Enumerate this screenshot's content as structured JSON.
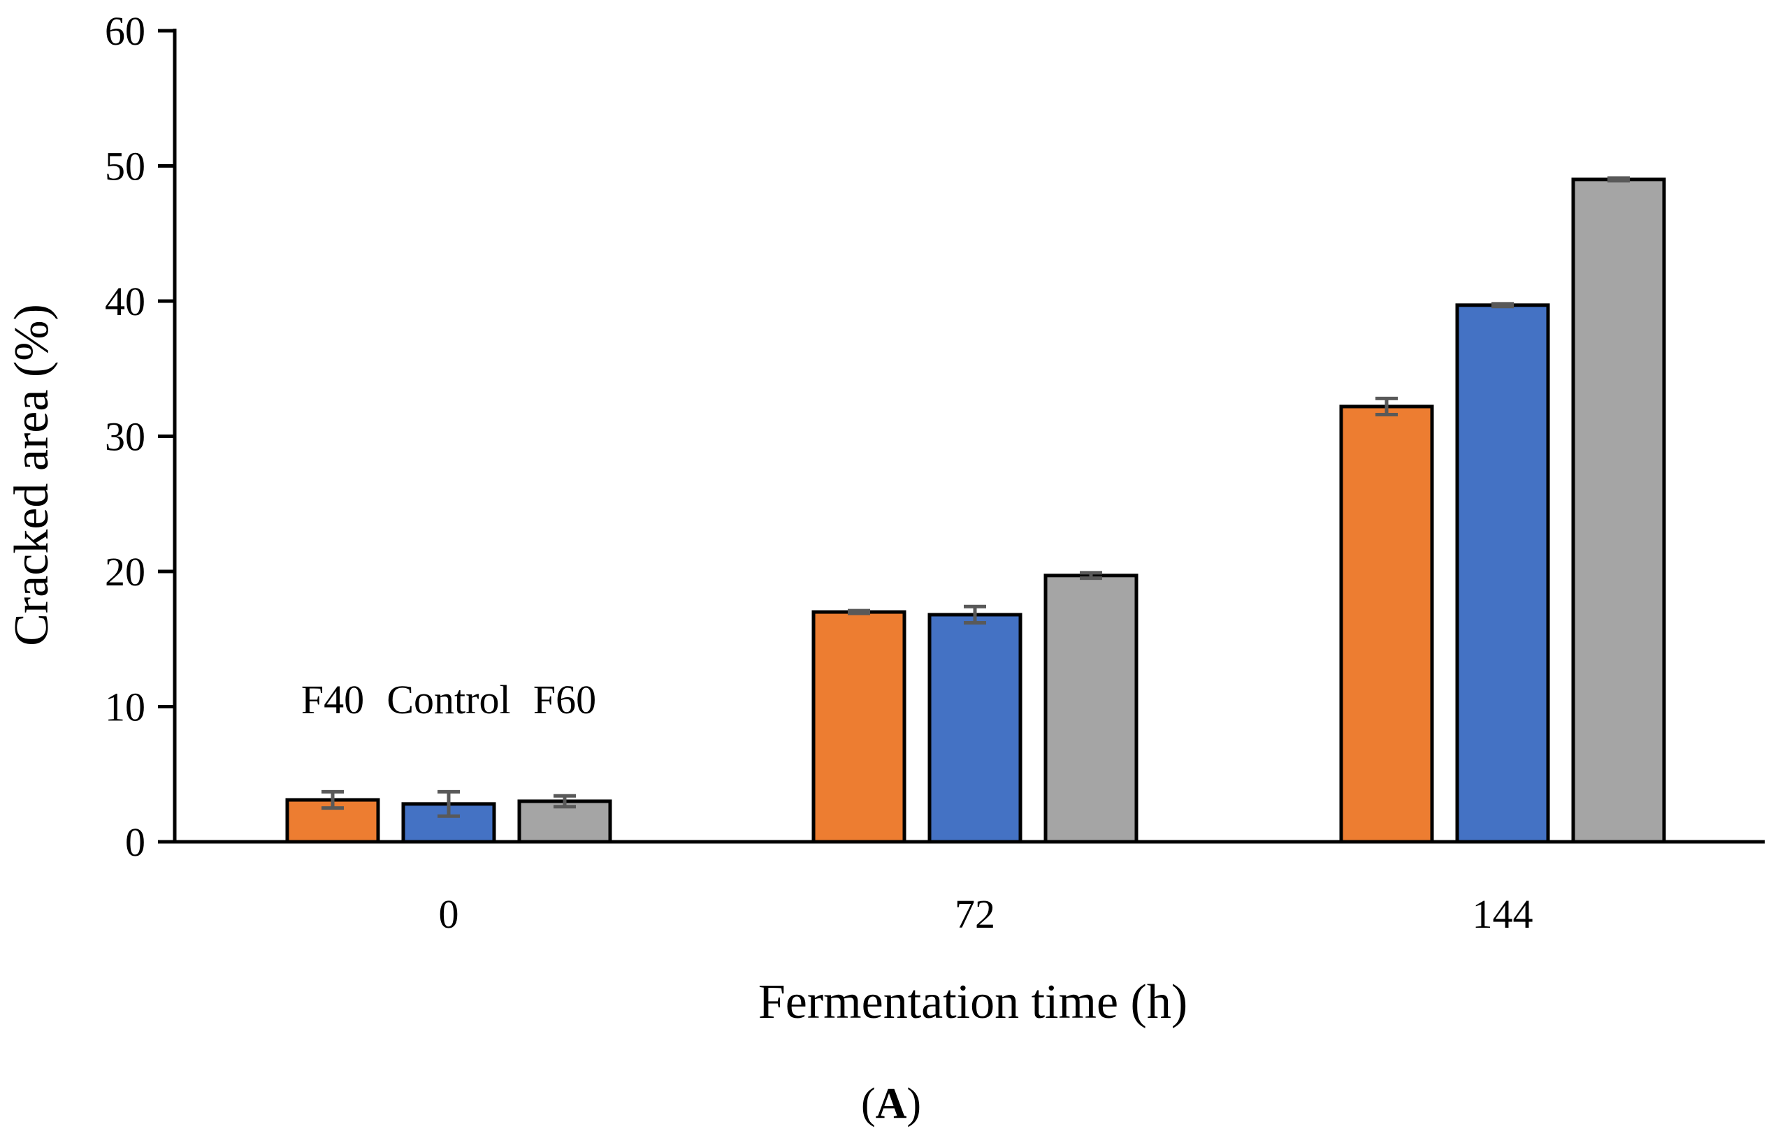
{
  "chart_data": {
    "type": "bar",
    "title": "",
    "xlabel": "Fermentation time (h)",
    "ylabel": "Cracked area (%)",
    "ylim": [
      0,
      60
    ],
    "yticks": [
      0,
      10,
      20,
      30,
      40,
      50,
      60
    ],
    "ytick_labels": [
      "0",
      "10",
      "20",
      "30",
      "40",
      "50",
      "60"
    ],
    "categories": [
      "0",
      "72",
      "144"
    ],
    "grid": false,
    "legend": "inline labels above first group",
    "series": [
      {
        "name": "F40",
        "color": "#ED7D31",
        "values": [
          3.1,
          17.0,
          32.2
        ],
        "errors": [
          0.6,
          0.1,
          0.6
        ]
      },
      {
        "name": "Control",
        "color": "#4472C4",
        "values": [
          2.8,
          16.8,
          39.7
        ],
        "errors": [
          0.9,
          0.6,
          0.1
        ]
      },
      {
        "name": "F60",
        "color": "#A5A5A5",
        "values": [
          3.0,
          19.7,
          49.0
        ],
        "errors": [
          0.4,
          0.2,
          0.1
        ]
      }
    ],
    "panel_label": {
      "open": "(",
      "letter": "A",
      "close": ")"
    }
  }
}
